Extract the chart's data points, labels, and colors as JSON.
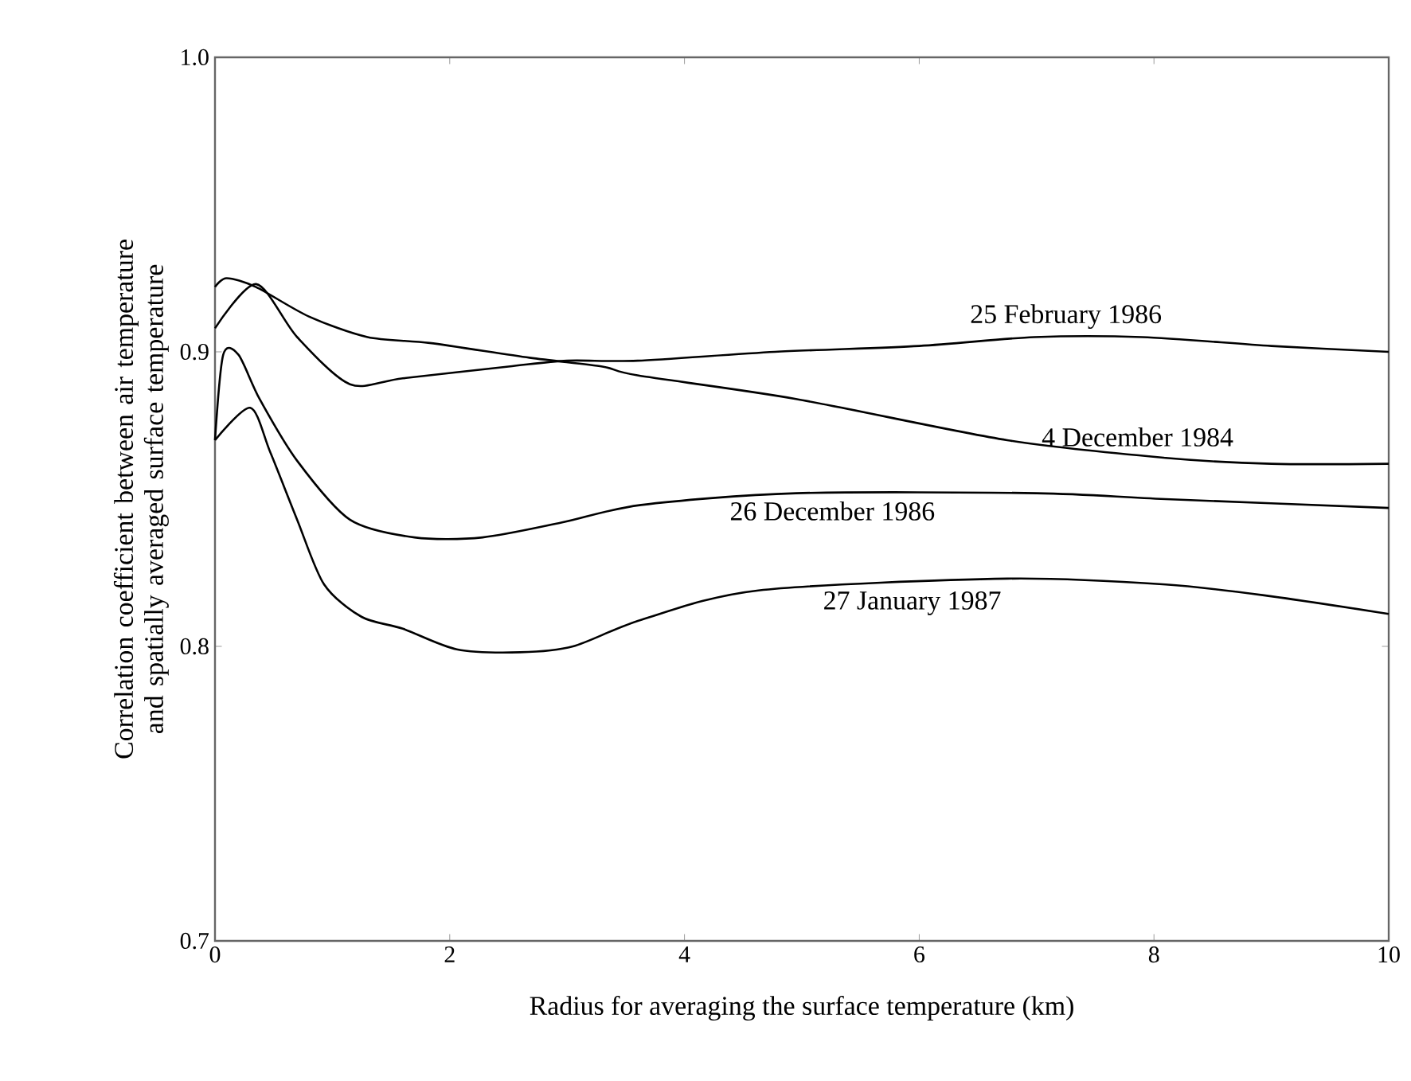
{
  "chart_data": {
    "type": "line",
    "xlabel": "Radius for averaging the surface temperature (km)",
    "ylabel": "Correlation coefficient between air temperature and spatially averaged surface temperature",
    "xlim": [
      0,
      10
    ],
    "ylim": [
      0.7,
      1.0
    ],
    "xticks": [
      0,
      2,
      4,
      6,
      8,
      10
    ],
    "yticks": [
      0.7,
      0.8,
      0.9,
      {
        "value": 1.0,
        "label": "1.0"
      }
    ],
    "grid": false,
    "marker": "none",
    "line_style": "solid",
    "series": [
      {
        "name": "25 February 1986",
        "color": "#000000",
        "x": [
          0,
          0.35,
          0.7,
          1.15,
          1.6,
          2.5,
          3.0,
          3.6,
          4.77,
          6.0,
          6.98,
          7.9,
          9.0,
          10
        ],
        "values": [
          0.908,
          0.923,
          0.905,
          0.889,
          0.891,
          0.895,
          0.897,
          0.897,
          0.9,
          0.902,
          0.905,
          0.905,
          0.902,
          0.9
        ]
      },
      {
        "name": "4 December 1984",
        "color": "#000000",
        "x": [
          0,
          0.1,
          0.35,
          0.8,
          1.3,
          1.83,
          2.68,
          3.3,
          3.6,
          4.95,
          6.75,
          8.1,
          9.0,
          10
        ],
        "values": [
          0.922,
          0.925,
          0.922,
          0.912,
          0.905,
          0.903,
          0.898,
          0.895,
          0.892,
          0.884,
          0.87,
          0.864,
          0.862,
          0.862
        ]
      },
      {
        "name": "26 December 1986",
        "color": "#000000",
        "x": [
          0,
          0.07,
          0.2,
          0.38,
          0.7,
          1.15,
          1.7,
          2.28,
          2.95,
          3.63,
          4.95,
          7.0,
          8.1,
          10
        ],
        "values": [
          0.87,
          0.899,
          0.899,
          0.884,
          0.863,
          0.843,
          0.837,
          0.837,
          0.842,
          0.848,
          0.852,
          0.852,
          0.85,
          0.847
        ]
      },
      {
        "name": "27 January 1987",
        "color": "#000000",
        "x": [
          0,
          0.3,
          0.47,
          0.7,
          0.93,
          1.25,
          1.6,
          2.06,
          2.6,
          3.05,
          3.63,
          4.63,
          6.75,
          8.1,
          9.0,
          10
        ],
        "values": [
          0.87,
          0.881,
          0.866,
          0.843,
          0.821,
          0.81,
          0.806,
          0.799,
          0.798,
          0.8,
          0.809,
          0.819,
          0.823,
          0.821,
          0.817,
          0.811
        ]
      }
    ]
  }
}
